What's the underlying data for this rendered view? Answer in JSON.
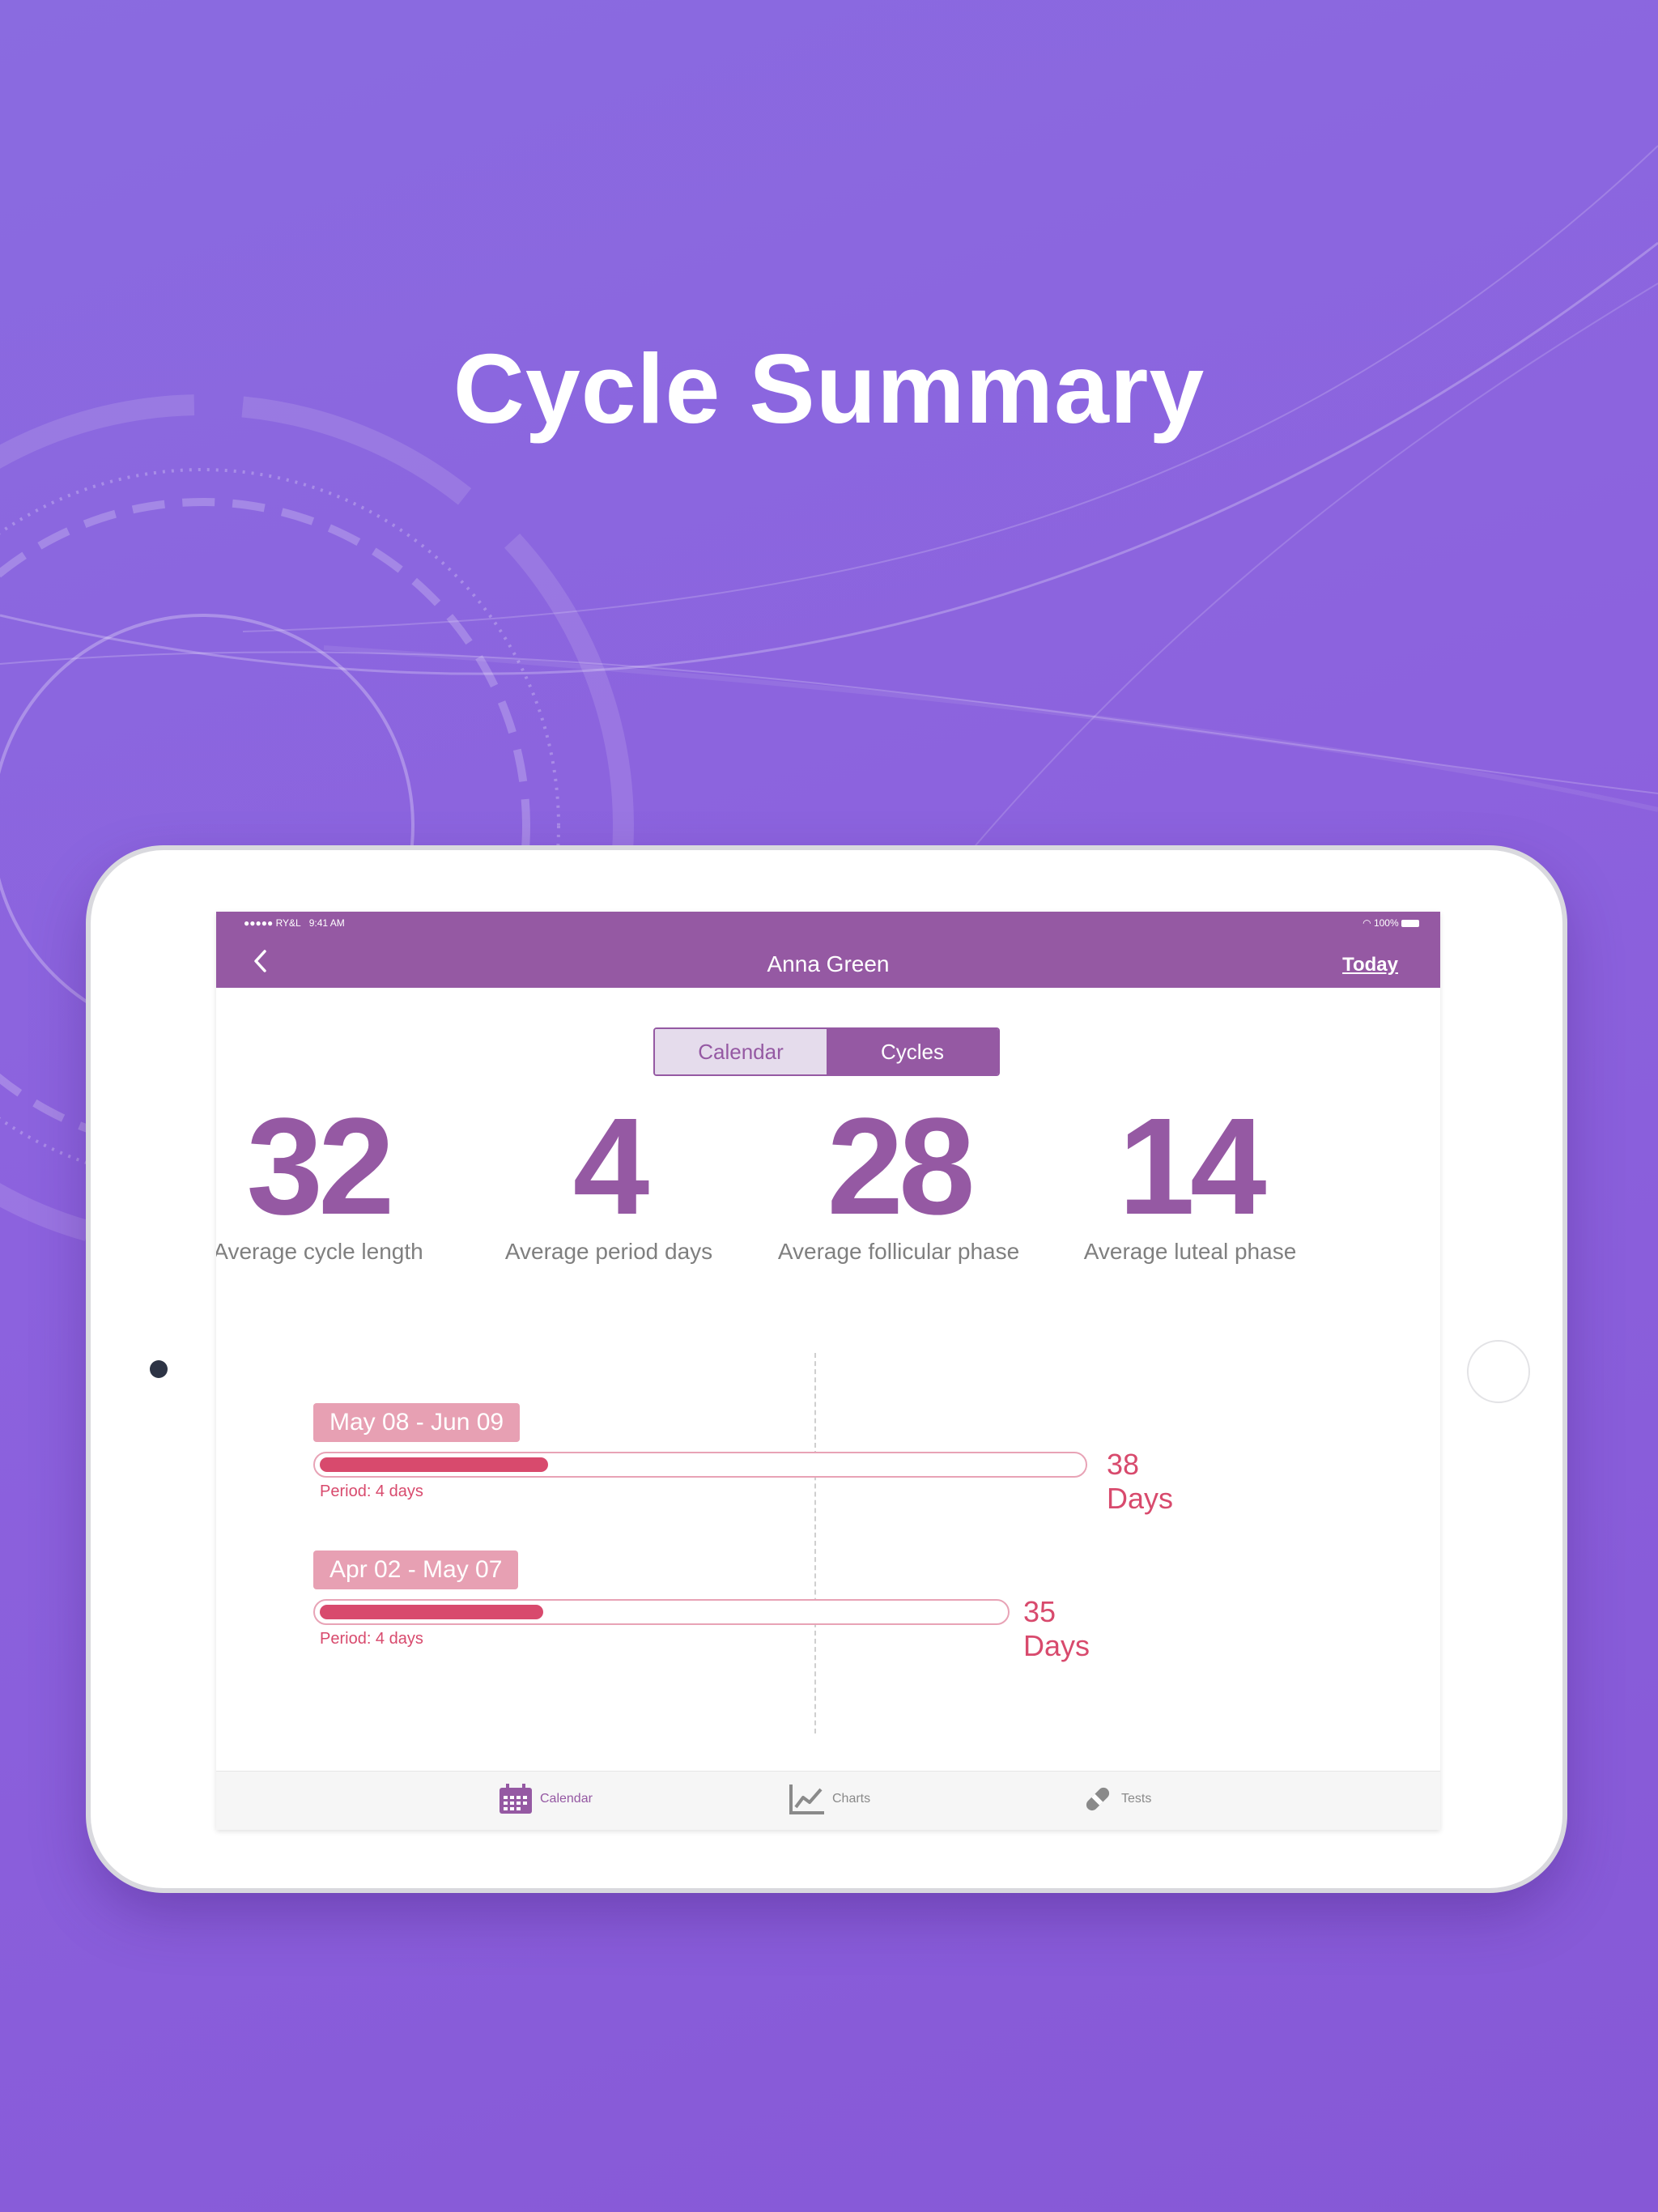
{
  "headline": "Cycle Summary",
  "status_bar": {
    "carrier": "●●●●● RY&L",
    "time": "9:41 AM",
    "battery": "100%"
  },
  "navbar": {
    "title": "Anna Green",
    "right_action": "Today",
    "back_icon": "chevron-left-icon"
  },
  "segmented": {
    "options": [
      "Calendar",
      "Cycles"
    ],
    "selected": "Cycles"
  },
  "stats": [
    {
      "value": "32",
      "label": "Average cycle length"
    },
    {
      "value": "4",
      "label": "Average period days"
    },
    {
      "value": "28",
      "label": "Average follicular phase"
    },
    {
      "value": "14",
      "label": "Average luteal phase"
    }
  ],
  "cycles": [
    {
      "range": "May 08 - Jun 09",
      "days": "38 Days",
      "period": "Period: 4 days",
      "length": 38,
      "period_days": 4
    },
    {
      "range": "Apr 02 - May 07",
      "days": "35 Days",
      "period": "Period: 4 days",
      "length": 35,
      "period_days": 4
    }
  ],
  "tabbar": [
    {
      "label": "Calendar",
      "icon": "calendar-icon",
      "active": true
    },
    {
      "label": "Charts",
      "icon": "chart-icon",
      "active": false
    },
    {
      "label": "Tests",
      "icon": "test-strip-icon",
      "active": false
    }
  ],
  "colors": {
    "background": "#8a63de",
    "accent": "#9559a3",
    "period": "#d84a6d",
    "pill": "#e7a0b3"
  }
}
